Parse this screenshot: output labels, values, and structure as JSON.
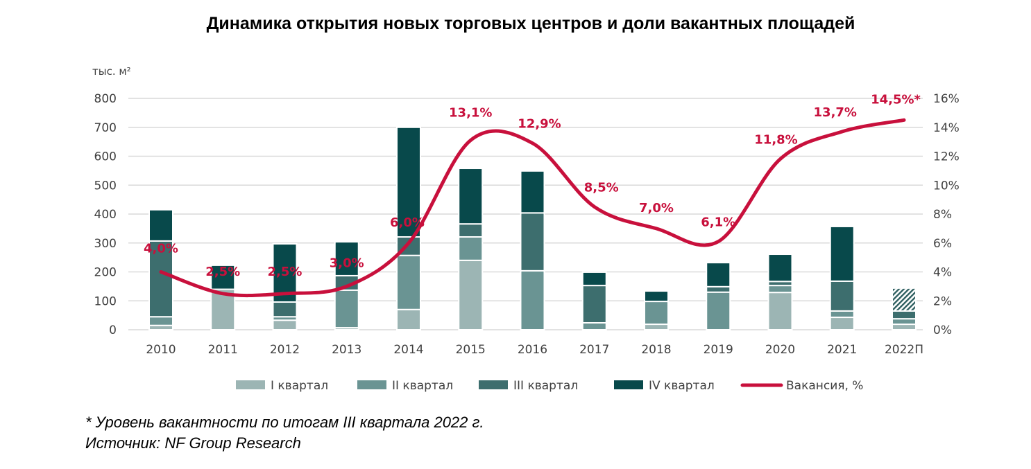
{
  "chart_data": {
    "type": "bar+line",
    "title": "Динамика открытия новых торговых центров и доли вакантных площадей",
    "ylabel_left": "тыс. м²",
    "ylim_left": [
      0,
      800
    ],
    "yticks_left": [
      "0",
      "100",
      "200",
      "300",
      "400",
      "500",
      "600",
      "700",
      "800"
    ],
    "ylim_right": [
      0,
      16
    ],
    "yticks_right": [
      "0%",
      "2%",
      "4%",
      "6%",
      "8%",
      "10%",
      "12%",
      "14%",
      "16%"
    ],
    "grid": true,
    "legend_position": "bottom",
    "categories": [
      "2010",
      "2011",
      "2012",
      "2013",
      "2014",
      "2015",
      "2016",
      "2017",
      "2018",
      "2019",
      "2020",
      "2021",
      "2022П"
    ],
    "series": [
      {
        "name": "I квартал",
        "type": "bar",
        "color": "#9cb5b4",
        "values": [
          15,
          140,
          33,
          7,
          70,
          240,
          0,
          0,
          19,
          0,
          129,
          43,
          19
        ]
      },
      {
        "name": "II квартал",
        "type": "bar",
        "color": "#6a9493",
        "values": [
          30,
          0,
          12,
          130,
          187,
          81,
          204,
          24,
          79,
          130,
          24,
          22,
          19
        ]
      },
      {
        "name": "III квартал",
        "type": "bar",
        "color": "#3d6e6e",
        "values": [
          262,
          0,
          51,
          50,
          64,
          45,
          200,
          129,
          0,
          19,
          14,
          103,
          27
        ]
      },
      {
        "name": "IV квартал",
        "type": "bar",
        "color": "#08494b",
        "values": [
          108,
          83,
          201,
          117,
          379,
          192,
          145,
          46,
          36,
          83,
          94,
          189,
          79
        ],
        "hatched_last": true
      },
      {
        "name": "Вакансия, %",
        "type": "line",
        "axis": "right",
        "color": "#c8103c",
        "values": [
          4.0,
          2.5,
          2.5,
          3.0,
          6.0,
          13.1,
          12.9,
          8.5,
          7.0,
          6.1,
          11.8,
          13.7,
          14.5
        ],
        "labels": [
          "4,0%",
          "2,5%",
          "2,5%",
          "3,0%",
          "6,0%",
          "13,1%",
          "12,9%",
          "8,5%",
          "7,0%",
          "6,1%",
          "11,8%",
          "13,7%",
          "14,5%*"
        ]
      }
    ]
  },
  "footnotes": {
    "note": "* Уровень вакантности по итогам III квартала 2022 г.",
    "source": "Источник: NF Group Research"
  }
}
